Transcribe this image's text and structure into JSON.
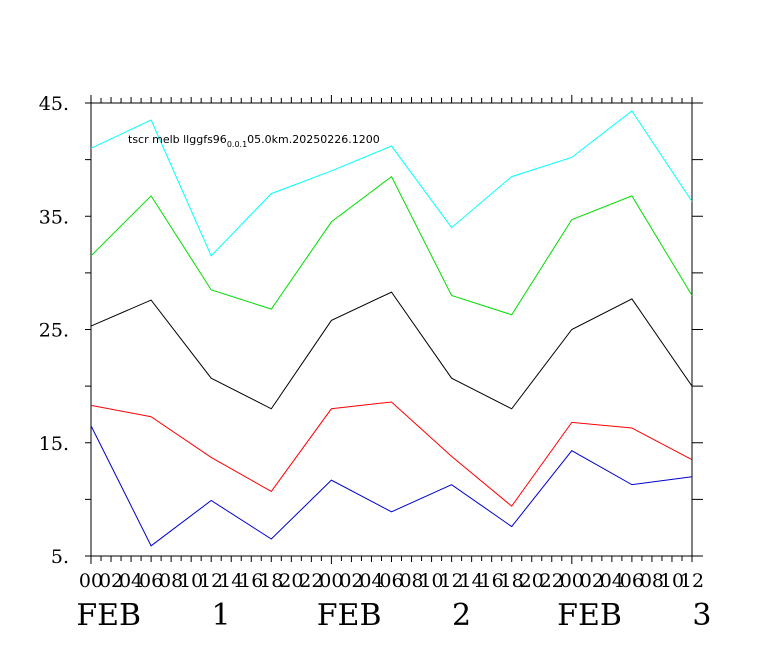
{
  "chart_data": {
    "type": "line",
    "title_main": "tscr melb llggfs96",
    "title_sub": "0.0.1",
    "title_rest": "05.0km.20250226.1200",
    "ylim": [
      5,
      45
    ],
    "yticks": [
      5,
      15,
      25,
      35,
      45
    ],
    "ytick_labels": [
      "5.",
      "15.",
      "25.",
      "35.",
      "45."
    ],
    "x_start_hour": 0,
    "x_end_hour": 60,
    "x_hour_labels": [
      "00",
      "02",
      "04",
      "06",
      "08",
      "10",
      "12",
      "14",
      "16",
      "18",
      "20",
      "22",
      "00",
      "02",
      "04",
      "06",
      "08",
      "10",
      "12",
      "14",
      "16",
      "18",
      "20",
      "22",
      "00",
      "02",
      "04",
      "06",
      "08",
      "10",
      "12"
    ],
    "date_labels": [
      {
        "text": "FEB",
        "day": "1",
        "hour": 6
      },
      {
        "text": "FEB",
        "day": "2",
        "hour": 30
      },
      {
        "text": "FEB",
        "day": "3",
        "hour": 54
      }
    ],
    "x": [
      0,
      6,
      12,
      18,
      24,
      30,
      36,
      42,
      48,
      54,
      60
    ],
    "series": [
      {
        "color": "#00ffff",
        "values": [
          41.0,
          43.5,
          31.5,
          37.0,
          39.0,
          41.2,
          34.0,
          38.5,
          40.2,
          44.3,
          36.3
        ]
      },
      {
        "color": "#00dd00",
        "values": [
          31.5,
          36.8,
          28.5,
          26.8,
          34.5,
          38.5,
          28.0,
          26.3,
          34.7,
          36.8,
          28.0
        ]
      },
      {
        "color": "#000000",
        "values": [
          25.3,
          27.6,
          20.7,
          18.0,
          25.8,
          28.3,
          20.7,
          18.0,
          25.0,
          27.7,
          20.0
        ]
      },
      {
        "color": "#ff0000",
        "values": [
          18.3,
          17.3,
          13.7,
          10.7,
          18.0,
          18.6,
          13.8,
          9.4,
          16.8,
          16.3,
          13.5
        ]
      },
      {
        "color": "#0000cc",
        "values": [
          16.5,
          5.9,
          9.9,
          6.5,
          11.7,
          8.9,
          11.3,
          7.6,
          14.3,
          11.3,
          12.0
        ]
      }
    ]
  }
}
